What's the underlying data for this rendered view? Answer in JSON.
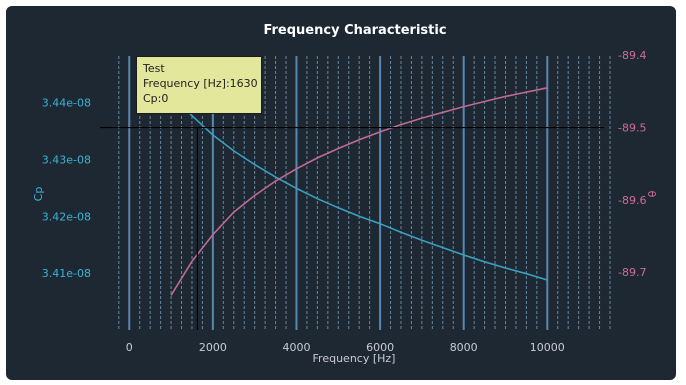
{
  "colors": {
    "background": "#1e2833",
    "cp_series": "#3a9fc0",
    "theta_series": "#c06a95",
    "left_axis": "#3ab3d3",
    "right_axis": "#d06c9c",
    "bottom_axis": "#c9ccd2",
    "grid": "#7fa8c6",
    "title": "#ffffff",
    "tooltip_bg": "#e3e79c"
  },
  "tooltip": {
    "line1": "Test",
    "line2": "Frequency [Hz]:1630",
    "line3": "Cp:0"
  },
  "crosshair": {
    "x": 1630,
    "y_right": -89.5
  },
  "chart_data": {
    "type": "line",
    "title": "Frequency Characteristic",
    "xlabel": "Frequency [Hz]",
    "ylabel": "Cp",
    "y2label": "θ",
    "xlim": [
      -700,
      11500
    ],
    "ylim": [
      3.4e-08,
      3.4496e-08
    ],
    "y2lim": [
      -89.78,
      -89.39
    ],
    "x_ticks": [
      0,
      2000,
      4000,
      6000,
      8000,
      10000
    ],
    "x_tick_labels": [
      "0",
      "2000",
      "4000",
      "6000",
      "8000",
      "10000"
    ],
    "y_ticks": [
      3.41e-08,
      3.42e-08,
      3.43e-08,
      3.44e-08
    ],
    "y_tick_labels": [
      "3.41e-08",
      "3.42e-08",
      "3.43e-08",
      "3.44e-08"
    ],
    "y2_ticks": [
      -89.7,
      -89.6,
      -89.5,
      -89.4
    ],
    "y2_tick_labels": [
      "-89.7",
      "-89.6",
      "-89.5",
      "-89.4"
    ],
    "grid": true,
    "series": [
      {
        "axis": "left",
        "x": [
          1000,
          1500,
          2000,
          2500,
          3000,
          3500,
          4000,
          4500,
          5000,
          5500,
          6000,
          6500,
          7000,
          7500,
          8000,
          8500,
          9000,
          9500,
          10000
        ],
        "values": [
          3.4415e-08,
          3.4377e-08,
          3.4343e-08,
          3.4315e-08,
          3.4291e-08,
          3.4269e-08,
          3.4249e-08,
          3.4231e-08,
          3.4215e-08,
          3.42e-08,
          3.4187e-08,
          3.4172e-08,
          3.4158e-08,
          3.4145e-08,
          3.4132e-08,
          3.412e-08,
          3.4109e-08,
          3.4099e-08,
          3.4088e-08
        ]
      },
      {
        "axis": "right",
        "x": [
          1000,
          1500,
          2000,
          2500,
          3000,
          3500,
          4000,
          4500,
          5000,
          5500,
          6000,
          6500,
          7000,
          7500,
          8000,
          8500,
          9000,
          9500,
          10000
        ],
        "values": [
          -89.732,
          -89.685,
          -89.648,
          -89.617,
          -89.594,
          -89.574,
          -89.557,
          -89.542,
          -89.529,
          -89.517,
          -89.506,
          -89.496,
          -89.487,
          -89.479,
          -89.471,
          -89.464,
          -89.457,
          -89.451,
          -89.445
        ]
      }
    ]
  }
}
